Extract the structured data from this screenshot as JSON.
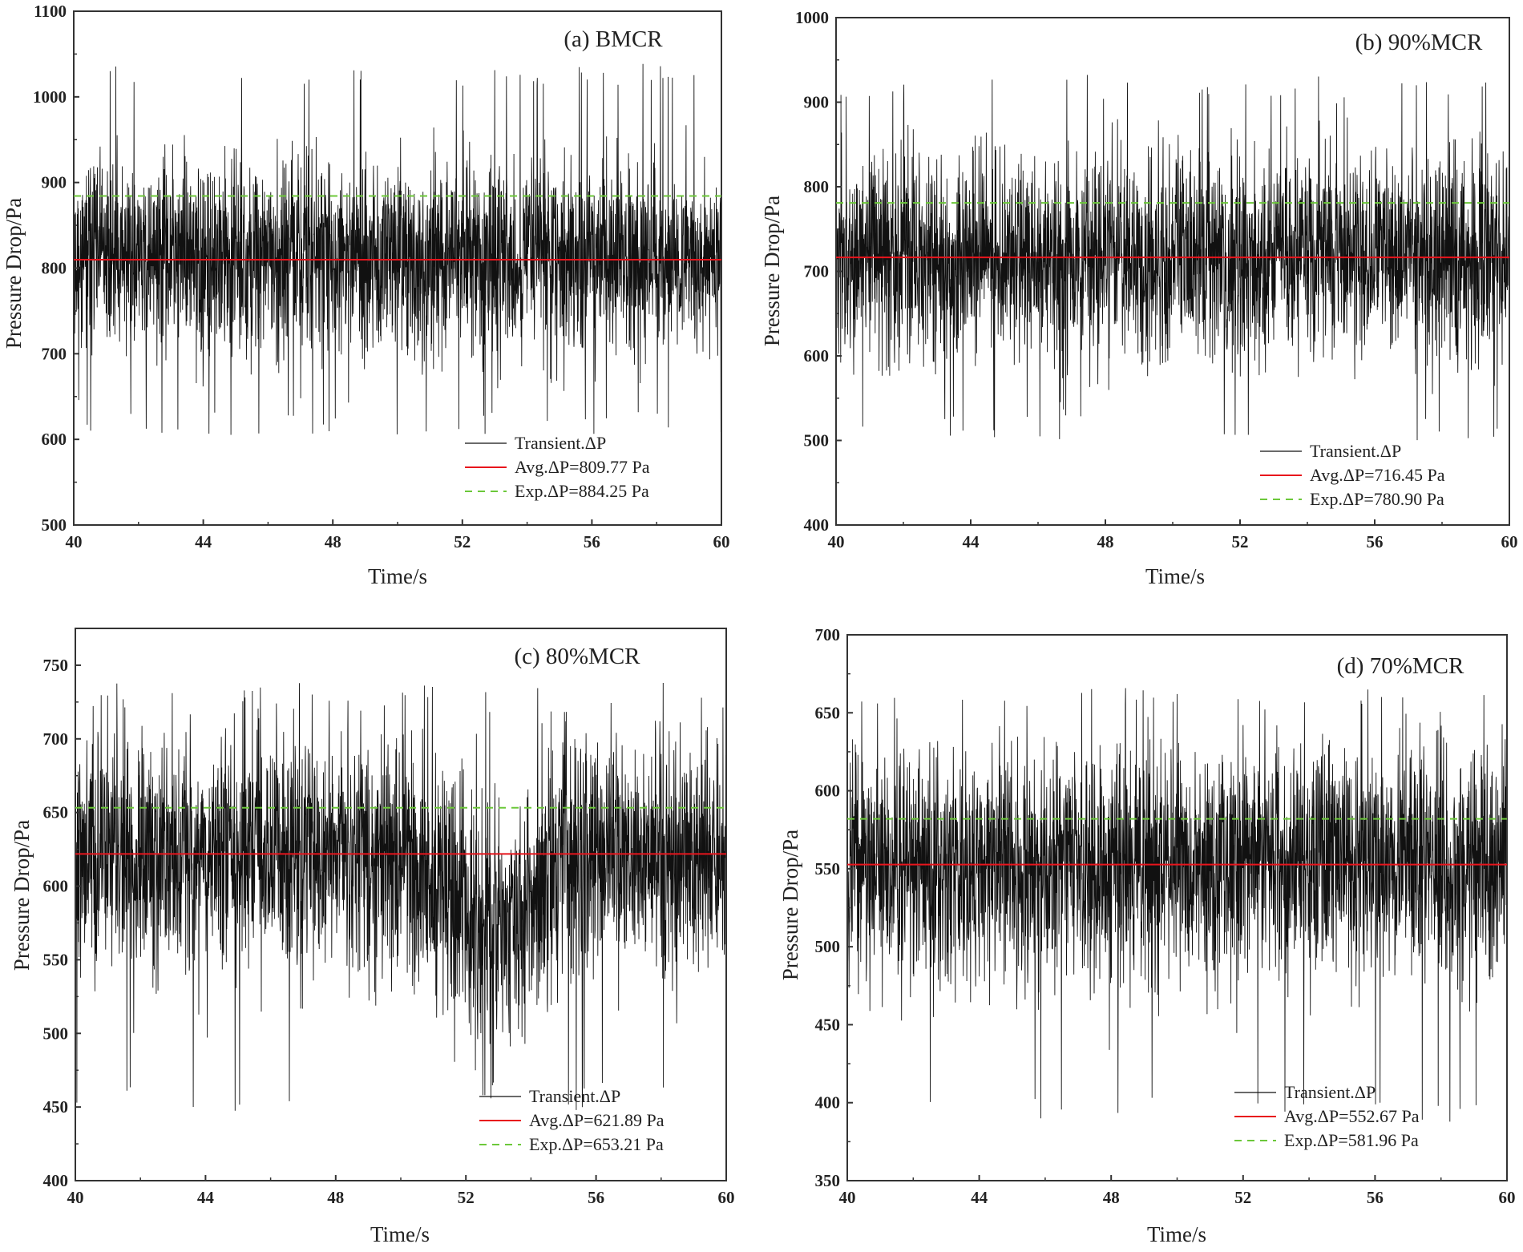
{
  "figure": {
    "colors": {
      "transient": "#111111",
      "average": "#e8141c",
      "experimental": "#6cc83a",
      "frame": "#333333"
    }
  },
  "chart_data": [
    {
      "id": "a",
      "type": "line",
      "title": "(a) BMCR",
      "xlabel": "Time/s",
      "ylabel": "Pressure Drop/Pa",
      "xlim": [
        40,
        60
      ],
      "ylim": [
        500,
        1100
      ],
      "xticks": [
        40,
        44,
        48,
        52,
        56,
        60
      ],
      "yticks": [
        500,
        600,
        700,
        800,
        900,
        1000,
        1100
      ],
      "grid": false,
      "legend_position": "bottom-right",
      "series": [
        {
          "name": "Transient.ΔP",
          "kind": "noise",
          "mean": 812,
          "sd": 55,
          "min": 605,
          "max": 1040,
          "seed": 11
        },
        {
          "name": "Avg.ΔP=809.77 Pa",
          "kind": "constant",
          "value": 809.77
        },
        {
          "name": "Exp.ΔP=884.25 Pa",
          "kind": "constant",
          "value": 884.25
        }
      ]
    },
    {
      "id": "b",
      "type": "line",
      "title": "(b) 90%MCR",
      "xlabel": "Time/s",
      "ylabel": "Pressure Drop/Pa",
      "xlim": [
        40,
        60
      ],
      "ylim": [
        400,
        1000
      ],
      "xticks": [
        40,
        44,
        48,
        52,
        56,
        60
      ],
      "yticks": [
        400,
        500,
        600,
        700,
        800,
        900,
        1000
      ],
      "grid": false,
      "legend_position": "bottom-right",
      "series": [
        {
          "name": "Transient.ΔP",
          "kind": "noise",
          "mean": 718,
          "sd": 62,
          "min": 500,
          "max": 935,
          "seed": 23
        },
        {
          "name": "Avg.ΔP=716.45 Pa",
          "kind": "constant",
          "value": 716.45
        },
        {
          "name": "Exp.ΔP=780.90 Pa",
          "kind": "constant",
          "value": 780.9
        }
      ]
    },
    {
      "id": "c",
      "type": "line",
      "title": "(c) 80%MCR",
      "xlabel": "Time/s",
      "ylabel": "Pressure Drop/Pa",
      "xlim": [
        40,
        60
      ],
      "ylim": [
        400,
        775
      ],
      "xticks": [
        40,
        44,
        48,
        52,
        56,
        60
      ],
      "yticks": [
        400,
        450,
        500,
        550,
        600,
        650,
        700,
        750
      ],
      "grid": false,
      "legend_position": "bottom-right",
      "series": [
        {
          "name": "Transient.ΔP",
          "kind": "noise",
          "mean": 622,
          "sd": 40,
          "min": 447,
          "max": 738,
          "seed": 37,
          "dip": {
            "start": 50.3,
            "end": 55.2,
            "depth": 45
          }
        },
        {
          "name": "Avg.ΔP=621.89 Pa",
          "kind": "constant",
          "value": 621.89
        },
        {
          "name": "Exp.ΔP=653.21 Pa",
          "kind": "constant",
          "value": 653.21
        }
      ]
    },
    {
      "id": "d",
      "type": "line",
      "title": "(d) 70%MCR",
      "xlabel": "Time/s",
      "ylabel": "Pressure Drop/Pa",
      "xlim": [
        40,
        60
      ],
      "ylim": [
        350,
        700
      ],
      "xticks": [
        40,
        44,
        48,
        52,
        56,
        60
      ],
      "yticks": [
        350,
        400,
        450,
        500,
        550,
        600,
        650,
        700
      ],
      "grid": false,
      "legend_position": "bottom-right",
      "series": [
        {
          "name": "Transient.ΔP",
          "kind": "noise",
          "mean": 553,
          "sd": 38,
          "min": 385,
          "max": 668,
          "seed": 53
        },
        {
          "name": "Avg.ΔP=552.67 Pa",
          "kind": "constant",
          "value": 552.67
        },
        {
          "name": "Exp.ΔP=581.96 Pa",
          "kind": "constant",
          "value": 581.96
        }
      ]
    }
  ]
}
